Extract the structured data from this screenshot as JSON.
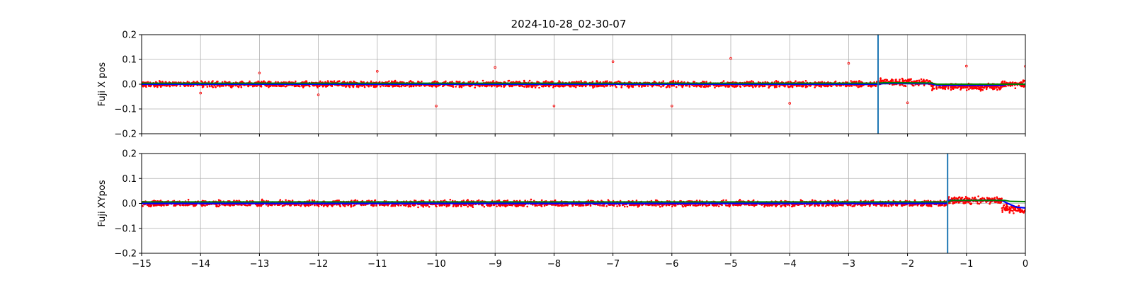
{
  "title": "2024-10-28_02-30-07",
  "colors": {
    "scatter": "#ff0000",
    "mean_line": "#0000ff",
    "trend_line": "#008000",
    "marker_line": "#1f77b4",
    "grid": "#b0b0b0"
  },
  "chart_data": [
    {
      "type": "scatter",
      "ylabel": "Fuji X pos",
      "xlim": [
        -15,
        0
      ],
      "ylim": [
        -0.2,
        0.2
      ],
      "xticks": [
        -15,
        -14,
        -13,
        -12,
        -11,
        -10,
        -9,
        -8,
        -7,
        -6,
        -5,
        -4,
        -3,
        -2,
        -1,
        0
      ],
      "yticks": [
        -0.2,
        -0.1,
        0.0,
        0.1,
        0.2
      ],
      "ytick_labels": [
        "−0.2",
        "−0.1",
        "0.0",
        "0.1",
        "0.2"
      ],
      "show_xtick_labels": false,
      "grid": true,
      "vertical_line_x": -2.5,
      "scatter_band": {
        "segments": [
          {
            "x": [
              -15,
              -2.5
            ],
            "y_center": 0.0,
            "spread": 0.015
          },
          {
            "x": [
              -2.5,
              -1.6
            ],
            "y_center": 0.008,
            "spread": 0.017
          },
          {
            "x": [
              -1.6,
              -0.4
            ],
            "y_center": -0.01,
            "spread": 0.016
          },
          {
            "x": [
              -0.4,
              0
            ],
            "y_center": 0.0,
            "spread": 0.016
          }
        ]
      },
      "outliers": [
        {
          "x": -14,
          "y": -0.036
        },
        {
          "x": -13,
          "y": 0.045
        },
        {
          "x": -12,
          "y": -0.043
        },
        {
          "x": -11,
          "y": 0.052
        },
        {
          "x": -10,
          "y": -0.088
        },
        {
          "x": -9,
          "y": 0.068
        },
        {
          "x": -8,
          "y": -0.088
        },
        {
          "x": -7,
          "y": 0.091
        },
        {
          "x": -6,
          "y": -0.088
        },
        {
          "x": -5,
          "y": 0.104
        },
        {
          "x": -4,
          "y": -0.077
        },
        {
          "x": -3,
          "y": 0.084
        },
        {
          "x": -2,
          "y": -0.075
        },
        {
          "x": -1,
          "y": 0.073
        },
        {
          "x": 0,
          "y": 0.072
        }
      ],
      "mean_line": [
        [
          -15,
          0.0
        ],
        [
          -2.5,
          0.0
        ],
        [
          -2.4,
          0.003
        ],
        [
          -1.6,
          0.002
        ],
        [
          -1.5,
          -0.004
        ],
        [
          -0.4,
          -0.004
        ],
        [
          -0.3,
          0.0
        ],
        [
          0,
          0.0
        ]
      ],
      "trend_line": [
        [
          -15,
          0.004
        ],
        [
          -2.5,
          0.004
        ],
        [
          -2.4,
          0.006
        ],
        [
          -1.6,
          0.005
        ],
        [
          -1.5,
          0.0
        ],
        [
          0,
          0.0
        ]
      ]
    },
    {
      "type": "scatter",
      "ylabel": "Fuji XYpos",
      "xlim": [
        -15,
        0
      ],
      "ylim": [
        -0.2,
        0.2
      ],
      "xticks": [
        -15,
        -14,
        -13,
        -12,
        -11,
        -10,
        -9,
        -8,
        -7,
        -6,
        -5,
        -4,
        -3,
        -2,
        -1,
        0
      ],
      "xtick_labels": [
        "−15",
        "−14",
        "−13",
        "−12",
        "−11",
        "−10",
        "−9",
        "−8",
        "−7",
        "−6",
        "−5",
        "−4",
        "−3",
        "−2",
        "−1",
        "0"
      ],
      "yticks": [
        -0.2,
        -0.1,
        0.0,
        0.1,
        0.2
      ],
      "ytick_labels": [
        "−0.2",
        "−0.1",
        "0.0",
        "0.1",
        "0.2"
      ],
      "show_xtick_labels": true,
      "grid": true,
      "vertical_line_x": -1.32,
      "scatter_band": {
        "segments": [
          {
            "x": [
              -15,
              -1.32
            ],
            "y_center": 0.0,
            "spread": 0.015
          },
          {
            "x": [
              -1.32,
              -0.4
            ],
            "y_center": 0.012,
            "spread": 0.018
          },
          {
            "x": [
              -0.4,
              -0.1
            ],
            "y_center": -0.02,
            "spread": 0.02
          },
          {
            "x": [
              -0.1,
              0
            ],
            "y_center": -0.03,
            "spread": 0.012
          }
        ]
      },
      "outliers": [],
      "mean_line": [
        [
          -15,
          0.0
        ],
        [
          -1.35,
          0.0
        ],
        [
          -1.3,
          0.012
        ],
        [
          -0.4,
          0.012
        ],
        [
          -0.3,
          0.0
        ],
        [
          -0.15,
          -0.015
        ],
        [
          0,
          -0.018
        ]
      ],
      "trend_line": [
        [
          -15,
          0.006
        ],
        [
          -1.3,
          0.006
        ],
        [
          -1.25,
          0.012
        ],
        [
          -0.35,
          0.012
        ],
        [
          -0.25,
          0.008
        ],
        [
          0,
          0.007
        ]
      ]
    }
  ]
}
